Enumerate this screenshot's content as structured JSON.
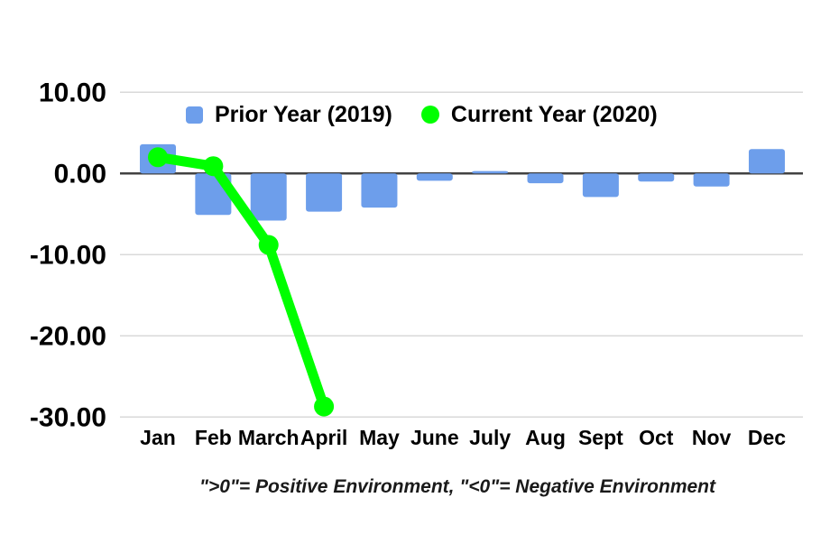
{
  "chart_data": {
    "type": "bar",
    "subtype": "combo-bar-line",
    "title": "",
    "xlabel": "",
    "ylabel": "",
    "categories": [
      "Jan",
      "Feb",
      "March",
      "April",
      "May",
      "June",
      "July",
      "Aug",
      "Sept",
      "Oct",
      "Nov",
      "Dec"
    ],
    "series": [
      {
        "name": "Prior Year (2019)",
        "type": "bar",
        "color": "#6d9eeb",
        "values": [
          3.6,
          -5.1,
          -5.8,
          -4.7,
          -4.2,
          -0.9,
          0.3,
          -1.2,
          -2.9,
          -1.0,
          -1.6,
          3.0
        ]
      },
      {
        "name": "Current Year (2020)",
        "type": "line",
        "color": "#00ff00",
        "values": [
          2.0,
          0.9,
          -8.8,
          -28.7,
          null,
          null,
          null,
          null,
          null,
          null,
          null,
          null
        ]
      }
    ],
    "ylim": [
      -30,
      10
    ],
    "yticks": [
      10,
      0,
      -10,
      -20,
      -30
    ],
    "ytick_labels": [
      "10.00",
      "0.00",
      "-10.00",
      "-20.00",
      "-30.00"
    ],
    "grid": true,
    "grid_color": "#d9d9d9",
    "zero_axis_color": "#424242",
    "label_color": "#000000",
    "background_color": "#ffffff",
    "legend_position": "top",
    "caption": "\">0\"= Positive Environment, \"<0\"= Negative Environment"
  }
}
